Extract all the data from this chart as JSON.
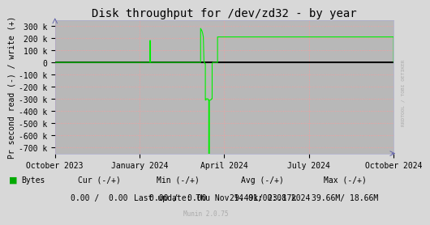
{
  "title": "Disk throughput for /dev/zd32 - by year",
  "ylabel": "Pr second read (-) / write (+)",
  "background_color": "#d8d8d8",
  "plot_bg_color": "#b8b8b8",
  "grid_color": "#ff9999",
  "line_color": "#00ee00",
  "zero_line_color": "#000000",
  "ylim": [
    -750000,
    350000
  ],
  "yticks": [
    -700000,
    -600000,
    -500000,
    -400000,
    -300000,
    -200000,
    -100000,
    0,
    100000,
    200000,
    300000
  ],
  "ytick_labels": [
    "-700 k",
    "-600 k",
    "-500 k",
    "-400 k",
    "-300 k",
    "-200 k",
    "-100 k",
    "0",
    "100 k",
    "200 k",
    "300 k"
  ],
  "xtick_labels": [
    "October 2023",
    "January 2024",
    "April 2024",
    "July 2024",
    "October 2024"
  ],
  "legend_label": "Bytes",
  "legend_color": "#00aa00",
  "cur_label": "Cur (-/+)",
  "min_label": "Min (-/+)",
  "avg_label": "Avg (-/+)",
  "max_label": "Max (-/+)",
  "cur_val": "0.00 /  0.00",
  "min_val": "0.00 /  0.00",
  "avg_val": "29.49k/ 23.17k",
  "max_val": "39.66M/ 18.66M",
  "last_update": "Last update: Thu Nov 14 01:00:08 2024",
  "munin_version": "Munin 2.0.75",
  "right_label": "RRDTOOL / TOBI OETIKER",
  "title_fontsize": 10,
  "axis_fontsize": 7,
  "legend_fontsize": 7,
  "note_color": "#aaaaaa",
  "data_x": [
    0.0,
    0.0,
    0.28,
    0.28,
    0.282,
    0.282,
    0.284,
    0.284,
    0.43,
    0.43,
    0.432,
    0.434,
    0.436,
    0.438,
    0.44,
    0.442,
    0.442,
    0.444,
    0.444,
    0.446,
    0.446,
    0.448,
    0.45,
    0.452,
    0.452,
    0.454,
    0.454,
    0.456,
    0.456,
    0.46,
    0.462,
    0.462,
    0.464,
    0.464,
    0.466,
    0.468,
    0.468,
    0.48,
    0.48,
    1.0,
    1.0
  ],
  "data_y": [
    0,
    0,
    0,
    180000,
    180000,
    0,
    0,
    0,
    0,
    280000,
    270000,
    260000,
    240000,
    210000,
    0,
    0,
    -10000,
    -10000,
    -310000,
    -310000,
    -300000,
    -300000,
    -300000,
    -300000,
    -310000,
    -310000,
    -750000,
    -750000,
    -310000,
    -310000,
    -300000,
    -300000,
    -300000,
    -10000,
    0,
    0,
    0,
    0,
    210000,
    210000,
    0
  ]
}
